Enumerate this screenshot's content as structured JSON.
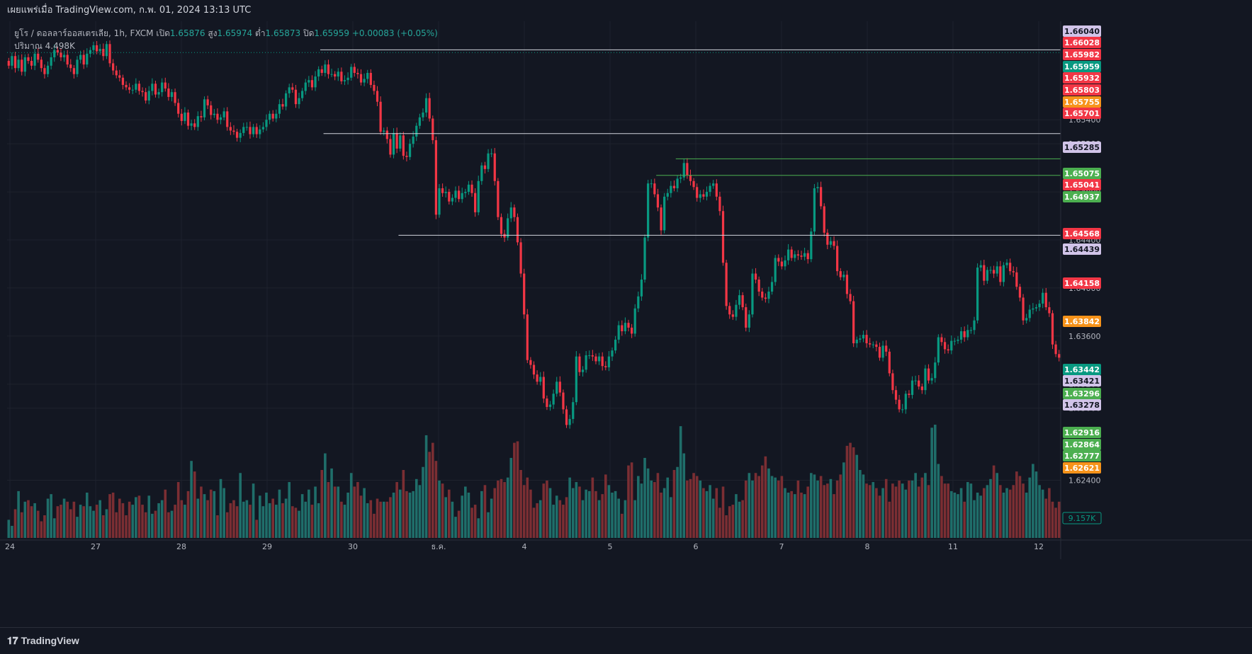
{
  "header": {
    "published_text": "เผยแพร่เมื่อ TradingView.com, ก.พ. 01, 2024 13:13 UTC"
  },
  "legend": {
    "symbol_text": "ยูโร / ดอลลาร์ออสเตรเลีย, 1h, FXCM",
    "open_label": "เปิด",
    "open": "1.65876",
    "high_label": "สูง",
    "high": "1.65974",
    "low_label": "ต่ำ",
    "low": "1.65873",
    "close_label": "ปิด",
    "close": "1.65959",
    "change": "+0.00083 (+0.05%)",
    "volume_label": "ปริมาณ",
    "volume_value": "4.498K"
  },
  "colors": {
    "background": "#131722",
    "up": "#089981",
    "down": "#f23645",
    "vol_up": "#1f6e6a",
    "vol_down": "#7b2e33",
    "grid": "#1e222d"
  },
  "brand": {
    "icon": "tradingview-logo-icon",
    "name": "TradingView"
  },
  "chart_data": {
    "type": "candlestick",
    "symbol": "EURAUD",
    "timeframe": "1h",
    "y_axis": {
      "range": [
        1.6192,
        1.6622
      ],
      "ticks": [
        "1.65400",
        "1.65200",
        "1.64800",
        "1.64400",
        "1.64000",
        "1.63600",
        "1.63200",
        "1.63000",
        "1.62400"
      ]
    },
    "x_axis": {
      "labels": [
        "24",
        "27",
        "28",
        "29",
        "30",
        "ธ.ค.",
        "4",
        "5",
        "6",
        "7",
        "8",
        "11",
        "12"
      ]
    },
    "price_labels": [
      {
        "value": "1.66040",
        "color": "#d1c4e9"
      },
      {
        "value": "1.66028",
        "color": "#f23645"
      },
      {
        "value": "1.65982",
        "color": "#f23645"
      },
      {
        "value": "1.65959",
        "color": "#089981"
      },
      {
        "value": "1.65932",
        "color": "#f23645"
      },
      {
        "value": "1.65803",
        "color": "#f23645"
      },
      {
        "value": "1.65755",
        "color": "#f7931a"
      },
      {
        "value": "1.65701",
        "color": "#f23645"
      },
      {
        "value": "1.65285",
        "color": "#d1c4e9"
      },
      {
        "value": "1.65075",
        "color": "#4caf50"
      },
      {
        "value": "1.65041",
        "color": "#f23645"
      },
      {
        "value": "1.64937",
        "color": "#4caf50"
      },
      {
        "value": "1.64568",
        "color": "#f23645"
      },
      {
        "value": "1.64439",
        "color": "#d1c4e9"
      },
      {
        "value": "1.64158",
        "color": "#f23645"
      },
      {
        "value": "1.63842",
        "color": "#f7931a"
      },
      {
        "value": "1.63442",
        "color": "#089981"
      },
      {
        "value": "1.63421",
        "color": "#d1c4e9"
      },
      {
        "value": "1.63296",
        "color": "#4caf50"
      },
      {
        "value": "1.63278",
        "color": "#d1c4e9"
      },
      {
        "value": "1.62916",
        "color": "#4caf50"
      },
      {
        "value": "1.62864",
        "color": "#4caf50"
      },
      {
        "value": "1.62777",
        "color": "#4caf50"
      },
      {
        "value": "1.62621",
        "color": "#f7931a"
      }
    ],
    "volume_label": "9.157K",
    "horizontal_lines": [
      {
        "value": 1.65982,
        "x_from_bar": 96,
        "color": "#d1d4dc"
      },
      {
        "value": 1.65285,
        "x_from_bar": 97,
        "color": "#d1d4dc"
      },
      {
        "value": 1.65075,
        "x_from_bar": 205,
        "color": "#4caf50"
      },
      {
        "value": 1.64937,
        "x_from_bar": 199,
        "color": "#4caf50"
      },
      {
        "value": 1.64439,
        "x_from_bar": 120,
        "color": "#d1d4dc"
      }
    ],
    "last_price_line": 1.65959,
    "closes": [
      1.6585,
      1.6593,
      1.6583,
      1.659,
      1.658,
      1.6592,
      1.6589,
      1.6585,
      1.6595,
      1.659,
      1.6583,
      1.6578,
      1.6585,
      1.6592,
      1.6598,
      1.6596,
      1.6592,
      1.6594,
      1.6586,
      1.6583,
      1.6578,
      1.659,
      1.6594,
      1.6586,
      1.6595,
      1.6598,
      1.6602,
      1.6597,
      1.6599,
      1.6593,
      1.6603,
      1.6587,
      1.6581,
      1.6577,
      1.6575,
      1.6569,
      1.6567,
      1.6565,
      1.6565,
      1.657,
      1.6564,
      1.6563,
      1.6556,
      1.6564,
      1.657,
      1.6561,
      1.6563,
      1.6571,
      1.6566,
      1.6559,
      1.6563,
      1.6554,
      1.6545,
      1.6539,
      1.6546,
      1.6535,
      1.6537,
      1.6534,
      1.6543,
      1.6542,
      1.6557,
      1.6552,
      1.6544,
      1.6545,
      1.654,
      1.6542,
      1.6547,
      1.6534,
      1.6531,
      1.653,
      1.6525,
      1.6529,
      1.6534,
      1.6534,
      1.6528,
      1.6534,
      1.6528,
      1.6532,
      1.6534,
      1.654,
      1.6545,
      1.6541,
      1.6545,
      1.6553,
      1.6551,
      1.6562,
      1.6567,
      1.6565,
      1.6553,
      1.6558,
      1.6564,
      1.6571,
      1.6573,
      1.6567,
      1.6576,
      1.6582,
      1.6579,
      1.6586,
      1.6578,
      1.6578,
      1.6576,
      1.658,
      1.6572,
      1.6573,
      1.6575,
      1.6584,
      1.6579,
      1.6578,
      1.6571,
      1.6574,
      1.6579,
      1.6569,
      1.6564,
      1.6555,
      1.653,
      1.6531,
      1.6524,
      1.6511,
      1.6529,
      1.6516,
      1.6527,
      1.651,
      1.6509,
      1.652,
      1.6526,
      1.6535,
      1.6542,
      1.6546,
      1.6558,
      1.6541,
      1.6523,
      1.6461,
      1.6483,
      1.6479,
      1.648,
      1.6472,
      1.6475,
      1.6481,
      1.6474,
      1.6479,
      1.648,
      1.6486,
      1.6479,
      1.6463,
      1.6489,
      1.6502,
      1.6499,
      1.6512,
      1.6512,
      1.6489,
      1.6459,
      1.6445,
      1.6442,
      1.6458,
      1.6467,
      1.6459,
      1.6438,
      1.6412,
      1.6378,
      1.634,
      1.6336,
      1.6328,
      1.6322,
      1.6326,
      1.6308,
      1.6301,
      1.6303,
      1.6312,
      1.6322,
      1.6313,
      1.6299,
      1.6286,
      1.6291,
      1.6305,
      1.6343,
      1.633,
      1.6332,
      1.6344,
      1.6344,
      1.6343,
      1.6339,
      1.6343,
      1.6335,
      1.6334,
      1.6343,
      1.6348,
      1.6357,
      1.6369,
      1.6364,
      1.6371,
      1.6367,
      1.6362,
      1.6383,
      1.6393,
      1.6407,
      1.6442,
      1.6487,
      1.6487,
      1.6478,
      1.6467,
      1.6448,
      1.6476,
      1.6479,
      1.6485,
      1.6483,
      1.6491,
      1.6492,
      1.6504,
      1.6494,
      1.6489,
      1.6484,
      1.6475,
      1.6478,
      1.6476,
      1.648,
      1.6485,
      1.6487,
      1.6476,
      1.6464,
      1.6421,
      1.6385,
      1.6378,
      1.6376,
      1.6386,
      1.6394,
      1.6384,
      1.6367,
      1.6378,
      1.6412,
      1.6407,
      1.6397,
      1.6392,
      1.6391,
      1.6397,
      1.6405,
      1.6425,
      1.6422,
      1.6418,
      1.6423,
      1.6432,
      1.6425,
      1.6428,
      1.6427,
      1.6426,
      1.6429,
      1.6424,
      1.6447,
      1.6483,
      1.6484,
      1.6468,
      1.6446,
      1.6436,
      1.6439,
      1.6435,
      1.6414,
      1.6409,
      1.6411,
      1.6395,
      1.6389,
      1.6354,
      1.6357,
      1.6358,
      1.6361,
      1.6354,
      1.6353,
      1.6353,
      1.6351,
      1.6342,
      1.6352,
      1.6347,
      1.6329,
      1.6315,
      1.6307,
      1.6299,
      1.6299,
      1.6312,
      1.6311,
      1.6323,
      1.6323,
      1.6318,
      1.6315,
      1.6333,
      1.6323,
      1.6325,
      1.6338,
      1.6359,
      1.6355,
      1.6349,
      1.6348,
      1.6356,
      1.6356,
      1.6357,
      1.6364,
      1.6359,
      1.6365,
      1.6365,
      1.6373,
      1.6417,
      1.6419,
      1.6406,
      1.6415,
      1.6415,
      1.6412,
      1.6418,
      1.6405,
      1.6419,
      1.6421,
      1.6414,
      1.6413,
      1.6401,
      1.6392,
      1.6373,
      1.6375,
      1.6382,
      1.6383,
      1.6384,
      1.6387,
      1.6396,
      1.6384,
      1.6379,
      1.6353,
      1.6345,
      1.6342
    ],
    "volumes": [
      1.2,
      0.8,
      1.9,
      3.1,
      1.7,
      2.4,
      2.5,
      2.1,
      2.3,
      1.8,
      1.1,
      1.5,
      2.6,
      2.9,
      1.3,
      2.1,
      2.2,
      2.6,
      2.4,
      1.9,
      2.4,
      1.4,
      2.2,
      2.1,
      3.0,
      2.1,
      1.8,
      2.2,
      2.5,
      1.5,
      1.9,
      2.9,
      3.0,
      1.7,
      2.6,
      2.3,
      1.5,
      2.4,
      2.2,
      2.7,
      2.8,
      2.2,
      1.7,
      2.8,
      1.6,
      1.8,
      2.3,
      2.5,
      3.2,
      1.7,
      1.8,
      2.2,
      3.7,
      2.5,
      2.2,
      3.1,
      5.1,
      4.4,
      2.6,
      3.4,
      2.9,
      2.5,
      3.2,
      3.1,
      1.5,
      3.9,
      3.3,
      1.7,
      2.3,
      2.5,
      2.1,
      4.3,
      2.4,
      2.5,
      2.2,
      3.6,
      1.2,
      2.8,
      2.1,
      3.0,
      2.3,
      2.6,
      2.2,
      3.2,
      2.3,
      2.6,
      3.7,
      2.1,
      2.0,
      1.8,
      2.9,
      2.4,
      3.2,
      2.2,
      3.4,
      2.3,
      4.5,
      5.6,
      3.7,
      4.6,
      3.4,
      3.4,
      2.4,
      2.2,
      3.0,
      4.3,
      3.4,
      3.7,
      2.8,
      3.3,
      2.3,
      2.5,
      1.6,
      2.6,
      2.4,
      2.4,
      2.4,
      2.7,
      3.0,
      3.7,
      3.2,
      4.5,
      3.1,
      3.0,
      3.1,
      3.9,
      3.5,
      4.7,
      6.8,
      5.7,
      6.3,
      5.1,
      3.8,
      3.6,
      2.7,
      3.2,
      2.4,
      1.4,
      1.8,
      2.8,
      3.4,
      3.0,
      2.0,
      2.2,
      1.3,
      3.1,
      3.5,
      1.7,
      2.6,
      3.3,
      3.8,
      3.9,
      3.7,
      4.0,
      5.3,
      6.3,
      6.4,
      4.5,
      3.5,
      4.0,
      3.2,
      2.0,
      2.3,
      2.5,
      3.6,
      3.8,
      3.3,
      2.2,
      2.8,
      2.5,
      2.2,
      2.7,
      4.0,
      3.3,
      3.7,
      3.4,
      2.5,
      3.2,
      3.1,
      4.0,
      3.1,
      2.5,
      2.9,
      4.2,
      3.5,
      3.0,
      3.1,
      2.6,
      1.6,
      2.5,
      4.8,
      5.0,
      2.5,
      4.1,
      3.6,
      5.3,
      4.6,
      3.8,
      3.7,
      4.3,
      3.0,
      3.3,
      4.0,
      2.7,
      4.5,
      4.7,
      7.4,
      5.6,
      3.8,
      3.9,
      4.3,
      4.1,
      3.8,
      3.3,
      3.1,
      3.5,
      2.6,
      3.3,
      2.0,
      3.4,
      1.5,
      2.1,
      2.2,
      2.9,
      2.4,
      2.5,
      3.8,
      4.3,
      3.8,
      4.3,
      4.1,
      4.8,
      5.4,
      4.6,
      4.1,
      4.0,
      3.8,
      4.1,
      3.3,
      3.0,
      3.1,
      2.9,
      3.8,
      3.0,
      2.9,
      3.4,
      4.3,
      4.2,
      3.8,
      4.1,
      3.5,
      3.6,
      3.9,
      2.9,
      3.8,
      4.2,
      5.0,
      6.1,
      6.3,
      6.0,
      5.5,
      4.5,
      4.2,
      3.6,
      3.5,
      3.7,
      3.3,
      2.8,
      3.3,
      3.9,
      2.4,
      3.6,
      3.4,
      3.8,
      3.6,
      3.2,
      3.8,
      3.8,
      4.3,
      3.4,
      4.0,
      4.3,
      3.5,
      7.3,
      7.5,
      4.9,
      4.1,
      3.6,
      3.6,
      3.1,
      3.0,
      2.9,
      3.3,
      2.4,
      3.7,
      3.6,
      2.5,
      3.0,
      2.8,
      3.3,
      3.5,
      3.9,
      4.8,
      4.3,
      3.5,
      3.0,
      3.3,
      3.2,
      3.5,
      4.4,
      4.1,
      3.6,
      3.0,
      4.0,
      4.9,
      4.4,
      3.5,
      3.2,
      2.6,
      3.3,
      2.4,
      2.0,
      2.4,
      1.9,
      2.6,
      1.7,
      2.9
    ]
  }
}
